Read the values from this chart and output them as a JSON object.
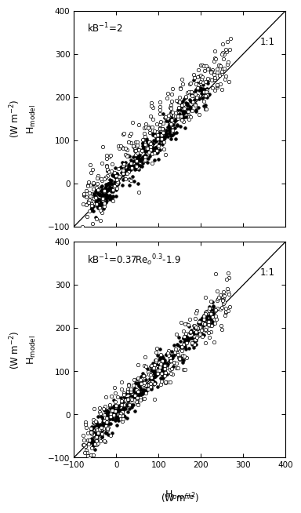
{
  "title1": "kB$^{-1}$=2",
  "title2": "kB$^{-1}$=0.37Re$_o$$^{0.3}$-1.9",
  "xlabel_main": "H$_{profile}$",
  "xlabel_units": "(W m$^{-2}$)",
  "ylabel_label": "H$_{model}$",
  "ylabel_units": "(W m$^{-2}$)",
  "xlim": [
    -100,
    400
  ],
  "ylim": [
    -100,
    400
  ],
  "xticks": [
    -100,
    0,
    100,
    200,
    300,
    400
  ],
  "yticks": [
    -100,
    0,
    100,
    200,
    300,
    400
  ],
  "line_label": "1:1",
  "bg_color": "#ffffff",
  "open_facecolor": "white",
  "filled_facecolor": "black",
  "edge_color": "black",
  "open_size": 10,
  "filled_size": 7,
  "linewidth_marker": 0.5,
  "n_open": 320,
  "n_filled": 380
}
